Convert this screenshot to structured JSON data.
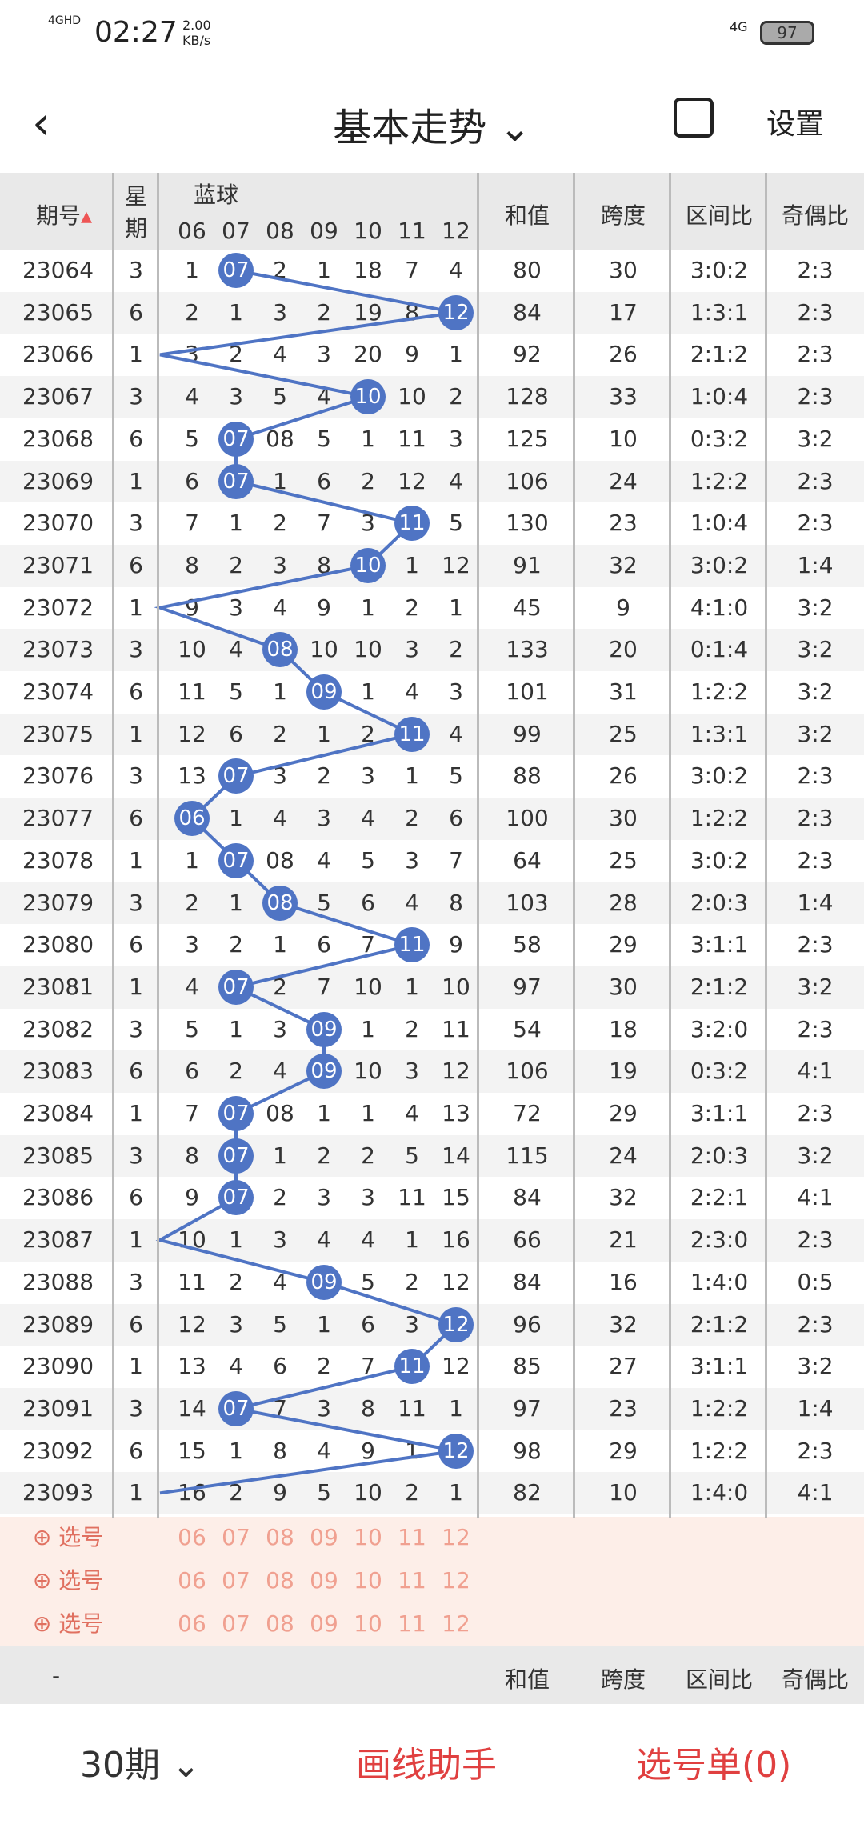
{
  "status": {
    "signal": "4GHD",
    "time": "02:27",
    "speed": "2.00 KB/s",
    "battery": "97",
    "net": "4G"
  },
  "nav": {
    "title": "基本走势",
    "settings": "设置"
  },
  "header": {
    "period": "期号",
    "week": "星期",
    "blue": "蓝球",
    "sum": "和值",
    "span": "跨度",
    "range": "区间比",
    "oddeven": "奇偶比",
    "cols": [
      "06",
      "07",
      "08",
      "09",
      "10",
      "11",
      "12"
    ]
  },
  "rows": [
    [
      "23064",
      "3",
      [
        "1",
        "07",
        "2",
        "1",
        "18",
        "7",
        "4"
      ],
      "80",
      "30",
      "3:0:2",
      "2:3",
      1
    ],
    [
      "23065",
      "6",
      [
        "2",
        "1",
        "3",
        "2",
        "19",
        "8",
        "12"
      ],
      "84",
      "17",
      "1:3:1",
      "2:3",
      6
    ],
    [
      "23066",
      "1",
      [
        "3",
        "2",
        "4",
        "3",
        "20",
        "9",
        "1"
      ],
      "92",
      "26",
      "2:1:2",
      "2:3",
      -1
    ],
    [
      "23067",
      "3",
      [
        "4",
        "3",
        "5",
        "4",
        "10",
        "10",
        "2"
      ],
      "128",
      "33",
      "1:0:4",
      "2:3",
      4
    ],
    [
      "23068",
      "6",
      [
        "5",
        "07",
        "08",
        "5",
        "1",
        "11",
        "3"
      ],
      "125",
      "10",
      "0:3:2",
      "3:2",
      1
    ],
    [
      "23069",
      "1",
      [
        "6",
        "07",
        "1",
        "6",
        "2",
        "12",
        "4"
      ],
      "106",
      "24",
      "1:2:2",
      "2:3",
      1
    ],
    [
      "23070",
      "3",
      [
        "7",
        "1",
        "2",
        "7",
        "3",
        "11",
        "5"
      ],
      "130",
      "23",
      "1:0:4",
      "2:3",
      5
    ],
    [
      "23071",
      "6",
      [
        "8",
        "2",
        "3",
        "8",
        "10",
        "1",
        "12"
      ],
      "91",
      "32",
      "3:0:2",
      "1:4",
      4
    ],
    [
      "23072",
      "1",
      [
        "9",
        "3",
        "4",
        "9",
        "1",
        "2",
        "1"
      ],
      "45",
      "9",
      "4:1:0",
      "3:2",
      -1
    ],
    [
      "23073",
      "3",
      [
        "10",
        "4",
        "08",
        "10",
        "10",
        "3",
        "2"
      ],
      "133",
      "20",
      "0:1:4",
      "3:2",
      2
    ],
    [
      "23074",
      "6",
      [
        "11",
        "5",
        "1",
        "09",
        "1",
        "4",
        "3"
      ],
      "101",
      "31",
      "1:2:2",
      "3:2",
      3
    ],
    [
      "23075",
      "1",
      [
        "12",
        "6",
        "2",
        "1",
        "2",
        "11",
        "4"
      ],
      "99",
      "25",
      "1:3:1",
      "3:2",
      5
    ],
    [
      "23076",
      "3",
      [
        "13",
        "07",
        "3",
        "2",
        "3",
        "1",
        "5"
      ],
      "88",
      "26",
      "3:0:2",
      "2:3",
      1
    ],
    [
      "23077",
      "6",
      [
        "06",
        "1",
        "4",
        "3",
        "4",
        "2",
        "6"
      ],
      "100",
      "30",
      "1:2:2",
      "2:3",
      0
    ],
    [
      "23078",
      "1",
      [
        "1",
        "07",
        "08",
        "4",
        "5",
        "3",
        "7"
      ],
      "64",
      "25",
      "3:0:2",
      "2:3",
      1
    ],
    [
      "23079",
      "3",
      [
        "2",
        "1",
        "08",
        "5",
        "6",
        "4",
        "8"
      ],
      "103",
      "28",
      "2:0:3",
      "1:4",
      2
    ],
    [
      "23080",
      "6",
      [
        "3",
        "2",
        "1",
        "6",
        "7",
        "11",
        "9"
      ],
      "58",
      "29",
      "3:1:1",
      "2:3",
      5
    ],
    [
      "23081",
      "1",
      [
        "4",
        "07",
        "2",
        "7",
        "10",
        "1",
        "10"
      ],
      "97",
      "30",
      "2:1:2",
      "3:2",
      1
    ],
    [
      "23082",
      "3",
      [
        "5",
        "1",
        "3",
        "09",
        "1",
        "2",
        "11"
      ],
      "54",
      "18",
      "3:2:0",
      "2:3",
      3
    ],
    [
      "23083",
      "6",
      [
        "6",
        "2",
        "4",
        "09",
        "10",
        "3",
        "12"
      ],
      "106",
      "19",
      "0:3:2",
      "4:1",
      3
    ],
    [
      "23084",
      "1",
      [
        "7",
        "07",
        "08",
        "1",
        "1",
        "4",
        "13"
      ],
      "72",
      "29",
      "3:1:1",
      "2:3",
      1
    ],
    [
      "23085",
      "3",
      [
        "8",
        "07",
        "1",
        "2",
        "2",
        "5",
        "14"
      ],
      "115",
      "24",
      "2:0:3",
      "3:2",
      1
    ],
    [
      "23086",
      "6",
      [
        "9",
        "07",
        "2",
        "3",
        "3",
        "11",
        "15"
      ],
      "84",
      "32",
      "2:2:1",
      "4:1",
      1
    ],
    [
      "23087",
      "1",
      [
        "10",
        "1",
        "3",
        "4",
        "4",
        "1",
        "16"
      ],
      "66",
      "21",
      "2:3:0",
      "2:3",
      -1
    ],
    [
      "23088",
      "3",
      [
        "11",
        "2",
        "4",
        "09",
        "5",
        "2",
        "12"
      ],
      "84",
      "16",
      "1:4:0",
      "0:5",
      3
    ],
    [
      "23089",
      "6",
      [
        "12",
        "3",
        "5",
        "1",
        "6",
        "3",
        "12"
      ],
      "96",
      "32",
      "2:1:2",
      "2:3",
      6
    ],
    [
      "23090",
      "1",
      [
        "13",
        "4",
        "6",
        "2",
        "7",
        "11",
        "12"
      ],
      "85",
      "27",
      "3:1:1",
      "3:2",
      5
    ],
    [
      "23091",
      "3",
      [
        "14",
        "07",
        "7",
        "3",
        "8",
        "11",
        "1"
      ],
      "97",
      "23",
      "1:2:2",
      "1:4",
      1
    ],
    [
      "23092",
      "6",
      [
        "15",
        "1",
        "8",
        "4",
        "9",
        "1",
        "12"
      ],
      "98",
      "29",
      "1:2:2",
      "2:3",
      6
    ],
    [
      "23093",
      "1",
      [
        "16",
        "2",
        "9",
        "5",
        "10",
        "2",
        "1"
      ],
      "82",
      "10",
      "1:4:0",
      "4:1",
      -1
    ]
  ],
  "select_label": "选号",
  "bottom": {
    "periods": "30期",
    "draw": "画线助手",
    "list": "选号单(0)"
  },
  "footer_dash": "-"
}
